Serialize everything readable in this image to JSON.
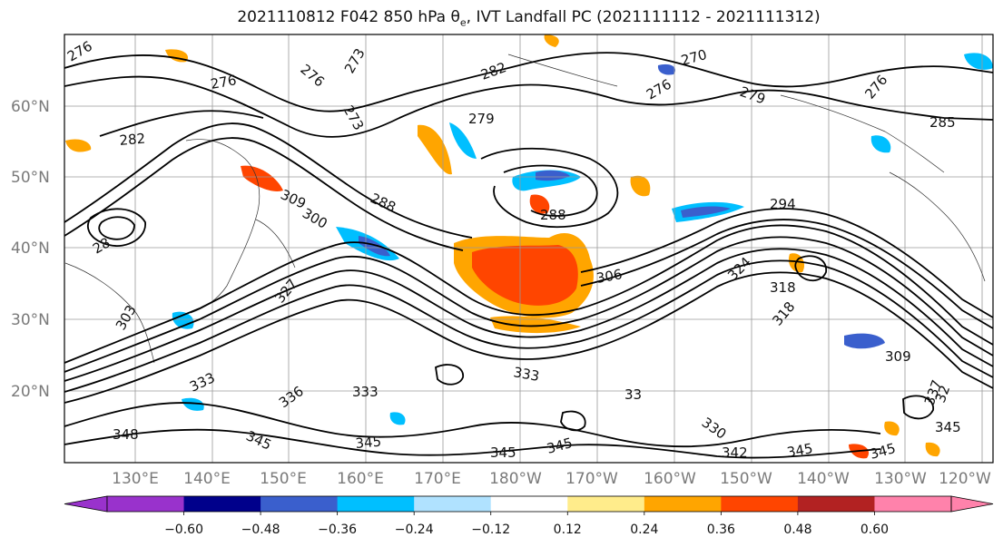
{
  "title": {
    "prefix": "2021110812 F042 850 hPa θ",
    "sub": "e",
    "suffix": ", IVT Landfall PC (2021111112 - 2021111312)"
  },
  "map": {
    "lat_labels": [
      "60°N",
      "50°N",
      "40°N",
      "30°N",
      "20°N"
    ],
    "lon_labels": [
      "130°E",
      "140°E",
      "150°E",
      "160°E",
      "170°E",
      "180°W",
      "170°W",
      "160°W",
      "150°W",
      "140°W",
      "130°W",
      "120°W"
    ],
    "contour_labels": [
      "276",
      "276",
      "276",
      "273",
      "273",
      "282",
      "270",
      "276",
      "279",
      "279",
      "276",
      "285",
      "282",
      "288",
      "288",
      "294",
      "309",
      "300",
      "28",
      "306",
      "324",
      "318",
      "318",
      "327",
      "303",
      "309",
      "333",
      "333",
      "333",
      "336",
      "33",
      "337",
      "330",
      "345",
      "345",
      "345",
      "345",
      "345",
      "342",
      "345",
      "348",
      "345",
      "32"
    ],
    "grid": true
  },
  "colorbar": {
    "ticks": [
      "−0.60",
      "−0.48",
      "−0.36",
      "−0.24",
      "−0.12",
      "0.12",
      "0.24",
      "0.36",
      "0.48",
      "0.60"
    ],
    "colors": [
      "#9932CC",
      "#00008B",
      "#3A5FCD",
      "#00BFFF",
      "#B0E2FF",
      "#FFFFFF",
      "#FFEC8B",
      "#FFA500",
      "#FF4500",
      "#B22222",
      "#FF82AB"
    ]
  }
}
